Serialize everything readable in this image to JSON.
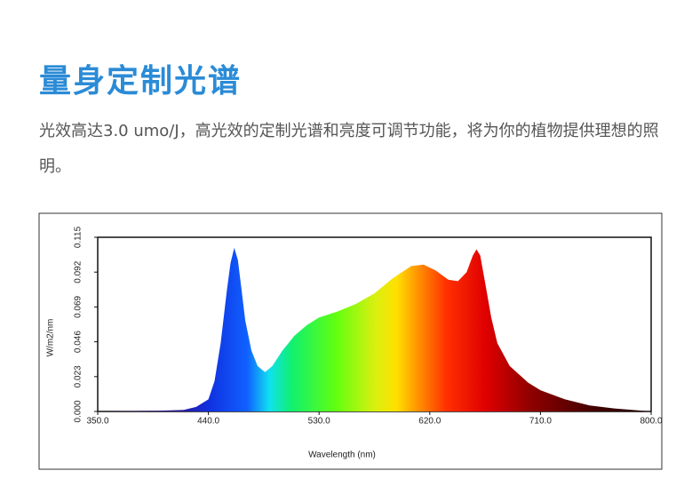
{
  "header": {
    "title": "量身定制光谱",
    "description": "光效高达3.0 umo/J，高光效的定制光谱和亮度可调节功能，将为你的植物提供理想的照明。"
  },
  "chart_data": {
    "type": "area",
    "xlabel": "Wavelength (nm)",
    "ylabel": "W/m2/nm",
    "x": [
      350,
      400,
      420,
      430,
      440,
      445,
      450,
      455,
      458,
      461,
      464,
      467,
      470,
      475,
      480,
      486,
      492,
      500,
      510,
      520,
      530,
      545,
      560,
      575,
      590,
      605,
      615,
      625,
      635,
      643,
      650,
      655,
      658,
      661,
      665,
      670,
      675,
      685,
      700,
      710,
      730,
      750,
      770,
      800
    ],
    "values": [
      0,
      0.0005,
      0.001,
      0.003,
      0.008,
      0.02,
      0.045,
      0.08,
      0.098,
      0.108,
      0.1,
      0.08,
      0.06,
      0.04,
      0.03,
      0.026,
      0.03,
      0.04,
      0.05,
      0.057,
      0.062,
      0.066,
      0.071,
      0.078,
      0.088,
      0.096,
      0.097,
      0.093,
      0.087,
      0.086,
      0.092,
      0.103,
      0.107,
      0.103,
      0.085,
      0.062,
      0.045,
      0.03,
      0.019,
      0.014,
      0.008,
      0.004,
      0.002,
      0
    ],
    "xlim": [
      350,
      800
    ],
    "xticks": [
      {
        "value": 350,
        "label": "350.0"
      },
      {
        "value": 440,
        "label": "440.0"
      },
      {
        "value": 530,
        "label": "530.0"
      },
      {
        "value": 620,
        "label": "620.0"
      },
      {
        "value": 710,
        "label": "710.0"
      },
      {
        "value": 800,
        "label": "800.0"
      }
    ],
    "ylim": [
      0,
      0.115
    ],
    "yticks": [
      {
        "value": 0,
        "label": "0.000"
      },
      {
        "value": 0.023,
        "label": "0.023"
      },
      {
        "value": 0.046,
        "label": "0.046"
      },
      {
        "value": 0.069,
        "label": "0.069"
      },
      {
        "value": 0.092,
        "label": "0.092"
      },
      {
        "value": 0.115,
        "label": "0.115"
      }
    ]
  }
}
